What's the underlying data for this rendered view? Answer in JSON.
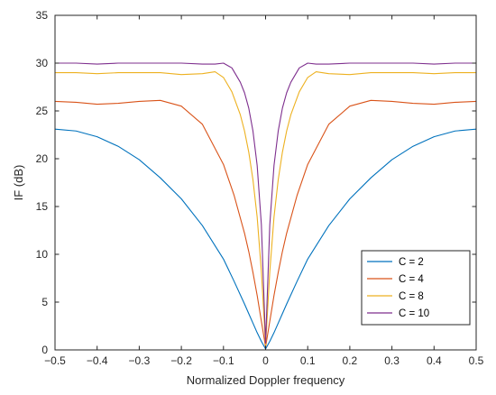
{
  "chart_data": {
    "type": "line",
    "title": "",
    "xlabel": "Normalized Doppler frequency",
    "ylabel": "IF (dB)",
    "xlim": [
      -0.5,
      0.5
    ],
    "ylim": [
      0,
      35
    ],
    "xticks": [
      -0.5,
      -0.4,
      -0.3,
      -0.2,
      -0.1,
      0,
      0.1,
      0.2,
      0.3,
      0.4,
      0.5
    ],
    "xtick_labels": [
      "−0.5",
      "−0.4",
      "−0.3",
      "−0.2",
      "−0.1",
      "0",
      "0.1",
      "0.2",
      "0.3",
      "0.4",
      "0.5"
    ],
    "yticks": [
      0,
      5,
      10,
      15,
      20,
      25,
      30,
      35
    ],
    "ytick_labels": [
      "0",
      "5",
      "10",
      "15",
      "20",
      "25",
      "30",
      "35"
    ],
    "grid": false,
    "legend_position": "lower-right",
    "series": [
      {
        "name": "C = 2",
        "color": "#0072BD",
        "x": [
          -0.5,
          -0.45,
          -0.4,
          -0.35,
          -0.3,
          -0.25,
          -0.2,
          -0.15,
          -0.1,
          -0.075,
          -0.05,
          -0.04,
          -0.03,
          -0.02,
          -0.01,
          0,
          0.01,
          0.02,
          0.03,
          0.04,
          0.05,
          0.075,
          0.1,
          0.15,
          0.2,
          0.25,
          0.3,
          0.35,
          0.4,
          0.45,
          0.5
        ],
        "y": [
          23.1,
          22.9,
          22.3,
          21.3,
          19.9,
          18.0,
          15.8,
          13.0,
          9.5,
          7.2,
          4.8,
          3.8,
          2.8,
          1.8,
          0.9,
          0.1,
          0.9,
          1.8,
          2.8,
          3.8,
          4.8,
          7.2,
          9.5,
          13.0,
          15.8,
          18.0,
          19.9,
          21.3,
          22.3,
          22.9,
          23.1
        ]
      },
      {
        "name": "C = 4",
        "color": "#D95319",
        "x": [
          -0.5,
          -0.45,
          -0.4,
          -0.35,
          -0.3,
          -0.25,
          -0.2,
          -0.15,
          -0.1,
          -0.075,
          -0.05,
          -0.04,
          -0.03,
          -0.02,
          -0.01,
          0,
          0.01,
          0.02,
          0.03,
          0.04,
          0.05,
          0.075,
          0.1,
          0.15,
          0.2,
          0.25,
          0.3,
          0.35,
          0.4,
          0.45,
          0.5
        ],
        "y": [
          26.0,
          25.9,
          25.7,
          25.8,
          26.0,
          26.1,
          25.5,
          23.6,
          19.4,
          16.2,
          12.2,
          10.3,
          8.1,
          5.7,
          3.0,
          0.3,
          3.0,
          5.7,
          8.1,
          10.3,
          12.2,
          16.2,
          19.4,
          23.6,
          25.5,
          26.1,
          26.0,
          25.8,
          25.7,
          25.9,
          26.0
        ]
      },
      {
        "name": "C = 8",
        "color": "#EDB120",
        "x": [
          -0.5,
          -0.45,
          -0.4,
          -0.35,
          -0.3,
          -0.25,
          -0.2,
          -0.15,
          -0.12,
          -0.1,
          -0.08,
          -0.06,
          -0.05,
          -0.04,
          -0.03,
          -0.02,
          -0.01,
          0,
          0.01,
          0.02,
          0.03,
          0.04,
          0.05,
          0.06,
          0.08,
          0.1,
          0.12,
          0.15,
          0.2,
          0.25,
          0.3,
          0.35,
          0.4,
          0.45,
          0.5
        ],
        "y": [
          29.0,
          29.0,
          28.9,
          29.0,
          29.0,
          29.0,
          28.8,
          28.9,
          29.1,
          28.5,
          27.0,
          24.6,
          22.9,
          20.7,
          17.8,
          13.9,
          8.2,
          0.5,
          8.2,
          13.9,
          17.8,
          20.7,
          22.9,
          24.6,
          27.0,
          28.5,
          29.1,
          28.9,
          28.8,
          29.0,
          29.0,
          29.0,
          28.9,
          29.0,
          29.0
        ]
      },
      {
        "name": "C = 10",
        "color": "#7E2F8E",
        "x": [
          -0.5,
          -0.45,
          -0.4,
          -0.35,
          -0.3,
          -0.25,
          -0.2,
          -0.15,
          -0.12,
          -0.1,
          -0.08,
          -0.06,
          -0.05,
          -0.04,
          -0.03,
          -0.02,
          -0.01,
          0,
          0.01,
          0.02,
          0.03,
          0.04,
          0.05,
          0.06,
          0.08,
          0.1,
          0.12,
          0.15,
          0.2,
          0.25,
          0.3,
          0.35,
          0.4,
          0.45,
          0.5
        ],
        "y": [
          30.0,
          30.0,
          29.9,
          30.0,
          30.0,
          30.0,
          30.0,
          29.9,
          29.9,
          30.0,
          29.5,
          28.0,
          26.9,
          25.3,
          22.9,
          19.3,
          13.1,
          0.7,
          13.1,
          19.3,
          22.9,
          25.3,
          26.9,
          28.0,
          29.5,
          30.0,
          29.9,
          29.9,
          30.0,
          30.0,
          30.0,
          30.0,
          29.9,
          30.0,
          30.0
        ]
      }
    ]
  }
}
